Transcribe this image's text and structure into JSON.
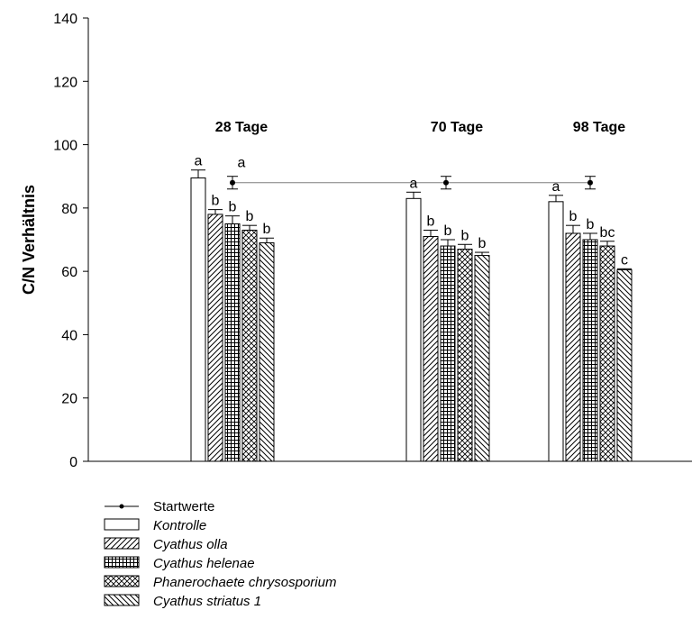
{
  "chart_data": {
    "type": "bar",
    "ylabel": "C/N Verhältnis",
    "xlabel": "",
    "ylim": [
      0,
      140
    ],
    "yticks": [
      "0",
      "20",
      "40",
      "60",
      "80",
      "100",
      "120",
      "140"
    ],
    "categories": [
      "28 Tage",
      "70 Tage",
      "98 Tage"
    ],
    "series": [
      {
        "name": "Kontrolle",
        "pattern": "none",
        "values": [
          89.5,
          83,
          82
        ],
        "errors": [
          2.5,
          2,
          2
        ],
        "letters": [
          "a",
          "a",
          "a"
        ]
      },
      {
        "name": "Cyathus olla",
        "pattern": "diagonal",
        "values": [
          78,
          71,
          72
        ],
        "errors": [
          1.5,
          2,
          2.5
        ],
        "letters": [
          "b",
          "b",
          "b"
        ]
      },
      {
        "name": "Cyathus helenae",
        "pattern": "grid",
        "values": [
          75,
          68,
          70
        ],
        "errors": [
          2.5,
          2,
          2
        ],
        "letters": [
          "b",
          "b",
          "b"
        ]
      },
      {
        "name": "Phanerochaete chrysosporium",
        "pattern": "crosshatch",
        "values": [
          73,
          67,
          68
        ],
        "errors": [
          1.5,
          1.5,
          1.5
        ],
        "letters": [
          "b",
          "b",
          "bc"
        ]
      },
      {
        "name": "Cyathus striatus 1",
        "pattern": "backdiagonal",
        "values": [
          69,
          65,
          60.5
        ],
        "errors": [
          1.5,
          1,
          0.3
        ],
        "letters": [
          "b",
          "b",
          "c"
        ]
      }
    ],
    "reference": {
      "name": "Startwerte",
      "value": 88,
      "error": 2,
      "letter": "a"
    },
    "grid": false,
    "legend_position": "bottom-left"
  }
}
